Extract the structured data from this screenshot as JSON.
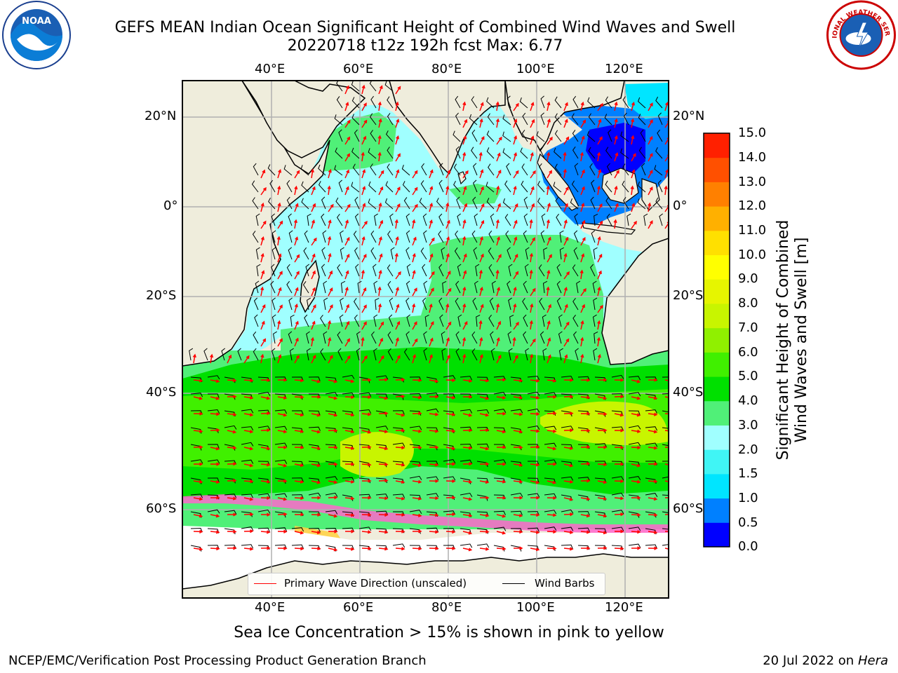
{
  "title_line1": "GEFS MEAN Indian Ocean Significant Height of Combined Wind Waves and Swell",
  "title_line2": "20220718 t12z 192h fcst   Max: 6.77",
  "logos": {
    "left": "noaa-logo",
    "left_text": "NOAA",
    "right": "nws-logo",
    "right_text": "NATIONAL WEATHER SERVICE"
  },
  "map": {
    "lon_labels": [
      "40°E",
      "60°E",
      "80°E",
      "100°E",
      "120°E"
    ],
    "lat_labels": [
      "20°N",
      "0°",
      "20°S",
      "40°S",
      "60°S"
    ],
    "lat_labels_right": [
      "20°N",
      "0°",
      "20°S",
      "40°S",
      "60°S"
    ],
    "gridlines": true
  },
  "legend": {
    "wave_dir": "Primary Wave Direction (unscaled)",
    "wind_barbs": "Wind Barbs",
    "wave_color": "#ff0000",
    "barb_color": "#000000"
  },
  "colorbar": {
    "label": "Significant Height of Combined Wind Waves and Swell [m]",
    "label_line1": "Significant Height of Combined",
    "label_line2": "Wind Waves and Swell [m]",
    "ticks": [
      "15.0",
      "14.0",
      "13.0",
      "12.0",
      "11.0",
      "10.0",
      "9.0",
      "8.0",
      "7.0",
      "6.0",
      "5.0",
      "4.0",
      "3.0",
      "2.0",
      "1.5",
      "1.0",
      "0.5",
      "0.0"
    ],
    "colors": [
      "#0000ff",
      "#0080ff",
      "#00e5ff",
      "#40f5f5",
      "#a0ffff",
      "#50f078",
      "#00e000",
      "#40f000",
      "#90f000",
      "#c8f500",
      "#e6f500",
      "#ffff00",
      "#ffe000",
      "#ffb000",
      "#ff8000",
      "#ff5000",
      "#ff2000"
    ]
  },
  "sea_ice_note": "Sea Ice Concentration > 15% is shown in pink to yellow",
  "footer_left": "NCEP/EMC/Verification Post Processing Product Generation Branch",
  "footer_right_prefix": "20 Jul 2022 on ",
  "footer_right_machine": "Hera"
}
